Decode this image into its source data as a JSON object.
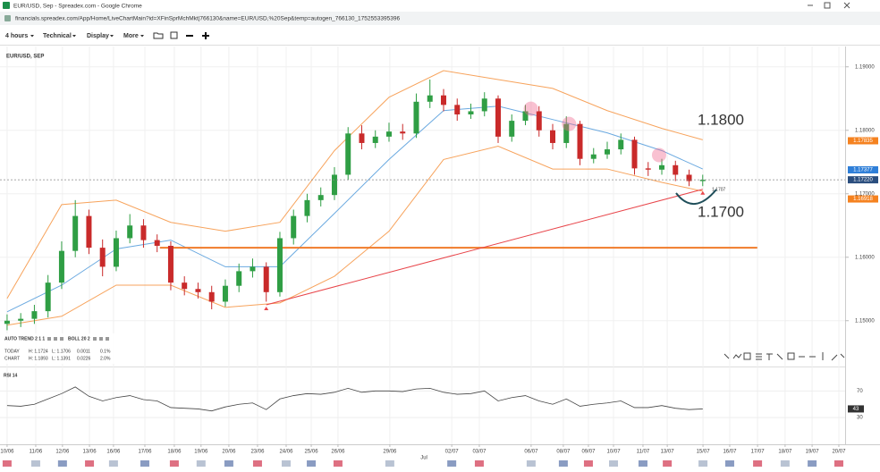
{
  "window": {
    "title": "EUR/USD, Sep - Spreadex.com - Google Chrome",
    "url": "financials.spreadex.com/App/Home/LiveChartMain?id=XFinSprMchMkt|766130&name=EUR/USD,%20Sep&temp=autogen_766130_1752553395396"
  },
  "toolbar": {
    "items": [
      "4 hours",
      "Technical",
      "Display",
      "More"
    ]
  },
  "indicator_legend": {
    "auto_trend": "AUTO TREND 2 1 1",
    "rows": [
      [
        "TODAY",
        "H: 1.1724",
        "L: 1.1706",
        "0.0011",
        "0.1%"
      ],
      [
        "CHART",
        "H: 1.1893",
        "L: 1.1391",
        "0.0226",
        "2.0%"
      ]
    ]
  },
  "annotation_texts": [
    "1.1800",
    "1.1700",
    "1.1707"
  ],
  "chart_data": [
    {
      "type": "candlestick",
      "title": "EUR/USD, SEP",
      "x": [
        0,
        0.5,
        1,
        1.5,
        2,
        2.5,
        3,
        3.5,
        4,
        4.5,
        5,
        5.5,
        6,
        6.5,
        7,
        7.5,
        8,
        8.5,
        9,
        9.5,
        10,
        10.5,
        11,
        11.5,
        12,
        12.5,
        13,
        13.5,
        14,
        14.5,
        15,
        15.5,
        16,
        16.5,
        17,
        17.5,
        18,
        18.5,
        19,
        19.5,
        20,
        20.5,
        21,
        21.5,
        22,
        22.5,
        23,
        23.5,
        24,
        24.5,
        25,
        25.5
      ],
      "open": [
        1.1495,
        1.15,
        1.1503,
        1.1515,
        1.156,
        1.161,
        1.1665,
        1.1615,
        1.1585,
        1.163,
        1.165,
        1.1627,
        1.1618,
        1.156,
        1.155,
        1.1545,
        1.153,
        1.1555,
        1.1578,
        1.1585,
        1.1545,
        1.163,
        1.1665,
        1.169,
        1.1698,
        1.173,
        1.1795,
        1.178,
        1.179,
        1.1798,
        1.1795,
        1.1845,
        1.1855,
        1.184,
        1.1825,
        1.183,
        1.185,
        1.179,
        1.1815,
        1.183,
        1.18,
        1.178,
        1.181,
        1.1755,
        1.1762,
        1.177,
        1.1785,
        1.174,
        1.1738,
        1.1745,
        1.173,
        1.172
      ],
      "high": [
        1.151,
        1.1512,
        1.1525,
        1.1572,
        1.1625,
        1.169,
        1.1675,
        1.1628,
        1.1642,
        1.1668,
        1.166,
        1.1636,
        1.1625,
        1.157,
        1.156,
        1.1555,
        1.1565,
        1.159,
        1.1598,
        1.1592,
        1.164,
        1.1675,
        1.17,
        1.171,
        1.1742,
        1.1805,
        1.1808,
        1.18,
        1.1812,
        1.181,
        1.1858,
        1.188,
        1.1865,
        1.185,
        1.1842,
        1.186,
        1.1855,
        1.1825,
        1.184,
        1.1838,
        1.181,
        1.1822,
        1.1815,
        1.1772,
        1.1782,
        1.1795,
        1.179,
        1.175,
        1.1755,
        1.1752,
        1.1738,
        1.173
      ],
      "low": [
        1.1485,
        1.149,
        1.1495,
        1.1505,
        1.155,
        1.16,
        1.1605,
        1.157,
        1.1578,
        1.1622,
        1.1615,
        1.1608,
        1.1548,
        1.154,
        1.1535,
        1.1518,
        1.1522,
        1.1545,
        1.1568,
        1.153,
        1.1538,
        1.162,
        1.1655,
        1.168,
        1.169,
        1.1722,
        1.177,
        1.1772,
        1.1782,
        1.1785,
        1.1788,
        1.1835,
        1.183,
        1.1815,
        1.1818,
        1.1822,
        1.178,
        1.1782,
        1.1808,
        1.179,
        1.177,
        1.1772,
        1.1745,
        1.1748,
        1.1755,
        1.1762,
        1.173,
        1.1728,
        1.173,
        1.172,
        1.1712,
        1.1712
      ],
      "close": [
        1.15,
        1.1503,
        1.1515,
        1.156,
        1.161,
        1.1665,
        1.1615,
        1.1585,
        1.163,
        1.165,
        1.1627,
        1.1618,
        1.156,
        1.155,
        1.1545,
        1.153,
        1.1555,
        1.1578,
        1.1585,
        1.1545,
        1.163,
        1.1665,
        1.169,
        1.1698,
        1.173,
        1.1795,
        1.178,
        1.179,
        1.1798,
        1.1795,
        1.1845,
        1.1855,
        1.184,
        1.1825,
        1.183,
        1.185,
        1.179,
        1.1815,
        1.183,
        1.18,
        1.178,
        1.181,
        1.1755,
        1.1762,
        1.177,
        1.1785,
        1.174,
        1.1738,
        1.1745,
        1.173,
        1.172,
        1.1722
      ],
      "up_color": "#2f9e44",
      "down_color": "#c92a2a",
      "bollinger": {
        "name": "BOLL 20 2",
        "x": [
          0,
          2,
          4,
          6,
          8,
          10,
          12,
          14,
          16,
          18,
          20,
          22,
          24,
          25.5
        ],
        "upper": [
          1.1535,
          1.1683,
          1.169,
          1.1655,
          1.1641,
          1.1655,
          1.1768,
          1.1852,
          1.1894,
          1.188,
          1.1866,
          1.1831,
          1.1803,
          1.1785
        ],
        "middle": [
          1.1514,
          1.1556,
          1.1613,
          1.1627,
          1.1585,
          1.1585,
          1.1669,
          1.1754,
          1.1831,
          1.1838,
          1.1817,
          1.1796,
          1.1768,
          1.1739
        ],
        "lower": [
          1.1493,
          1.1507,
          1.1556,
          1.1556,
          1.1521,
          1.1528,
          1.157,
          1.1641,
          1.1754,
          1.1775,
          1.1739,
          1.1739,
          1.1718,
          1.1704
        ],
        "band_color": "#f7a35c",
        "middle_color": "#6aa9e0"
      },
      "xlim": [
        -0.26,
        30.72
      ],
      "xticks": [
        {
          "value": 0,
          "label": "10/06"
        },
        {
          "value": 1.05,
          "label": "11/06"
        },
        {
          "value": 2.03,
          "label": "12/06"
        },
        {
          "value": 3.02,
          "label": "13/06"
        },
        {
          "value": 3.9,
          "label": "16/06"
        },
        {
          "value": 5.05,
          "label": "17/06"
        },
        {
          "value": 6.13,
          "label": "18/06"
        },
        {
          "value": 7.11,
          "label": "19/06"
        },
        {
          "value": 8.13,
          "label": "20/06"
        },
        {
          "value": 9.18,
          "label": "23/06"
        },
        {
          "value": 10.23,
          "label": "24/06"
        },
        {
          "value": 11.15,
          "label": "25/06"
        },
        {
          "value": 12.13,
          "label": "26/06"
        },
        {
          "value": 14.03,
          "label": "29/06"
        },
        {
          "value": 16.3,
          "label": "02/07"
        },
        {
          "value": 17.31,
          "label": "03/07"
        },
        {
          "value": 19.21,
          "label": "06/07"
        },
        {
          "value": 20.39,
          "label": "08/07"
        },
        {
          "value": 21.31,
          "label": "09/07"
        },
        {
          "value": 22.23,
          "label": "10/07"
        },
        {
          "value": 23.31,
          "label": "11/07"
        },
        {
          "value": 24.2,
          "label": "13/07"
        },
        {
          "value": 25.51,
          "label": "15/07"
        },
        {
          "value": 26.49,
          "label": "16/07"
        },
        {
          "value": 27.51,
          "label": "17/07"
        },
        {
          "value": 28.52,
          "label": "18/07"
        },
        {
          "value": 29.51,
          "label": "19/07"
        },
        {
          "value": 30.49,
          "label": "20/07"
        }
      ],
      "period_label": {
        "value": 15.28,
        "label": "Jul"
      },
      "ylim": [
        1.1456,
        1.1925
      ],
      "yticks": [
        {
          "value": 1.15,
          "label": "1.15000"
        },
        {
          "value": 1.16,
          "label": "1.16000"
        },
        {
          "value": 1.17,
          "label": "1.17000"
        },
        {
          "value": 1.18,
          "label": "1.18000"
        },
        {
          "value": 1.19,
          "label": "1.19000"
        }
      ],
      "grid": true,
      "current_price": {
        "value": 1.1722,
        "label": "1.17220",
        "color": "#2b4e7e"
      },
      "price_badges": [
        {
          "value": 1.17835,
          "label": "1.17835",
          "color": "#f58220"
        },
        {
          "value": 1.17377,
          "label": "1.17377",
          "color": "#2f7fd8"
        },
        {
          "value": 1.16918,
          "label": "1.16918",
          "color": "#f58220"
        }
      ],
      "support_line": {
        "x": [
          5.6,
          27.5
        ],
        "y": 1.1615,
        "color": "#f07b2a"
      },
      "trend_line": {
        "x": [
          9.5,
          25.5
        ],
        "y": [
          1.1525,
          1.1707
        ],
        "color": "#e8454a"
      },
      "highlights": {
        "x": [
          19.2,
          20.6,
          23.9
        ],
        "y": [
          1.1834,
          1.181,
          1.1761
        ],
        "color": "#f0648c"
      }
    },
    {
      "type": "line",
      "title": "RSI 14",
      "x": [
        0,
        0.5,
        1,
        1.5,
        2,
        2.5,
        3,
        3.5,
        4,
        4.5,
        5,
        5.5,
        6,
        6.5,
        7,
        7.5,
        8,
        8.5,
        9,
        9.5,
        10,
        10.5,
        11,
        11.5,
        12,
        12.5,
        13,
        13.5,
        14,
        14.5,
        15,
        15.5,
        16,
        16.5,
        17,
        17.5,
        18,
        18.5,
        19,
        19.5,
        20,
        20.5,
        21,
        21.5,
        22,
        22.5,
        23,
        23.5,
        24,
        24.5,
        25,
        25.5
      ],
      "values": [
        48,
        47,
        50,
        58,
        66,
        76,
        62,
        55,
        60,
        63,
        57,
        55,
        45,
        44,
        43,
        40,
        46,
        50,
        52,
        42,
        58,
        63,
        66,
        65,
        68,
        74,
        68,
        70,
        70,
        69,
        73,
        74,
        68,
        65,
        66,
        70,
        55,
        60,
        63,
        55,
        50,
        58,
        47,
        50,
        52,
        55,
        45,
        45,
        48,
        44,
        42,
        43
      ],
      "color": "#444444",
      "badge_color": "#333333",
      "xlim": [
        -0.26,
        30.72
      ],
      "ylim": [
        10,
        100
      ],
      "yticks": [
        30,
        70
      ]
    }
  ]
}
